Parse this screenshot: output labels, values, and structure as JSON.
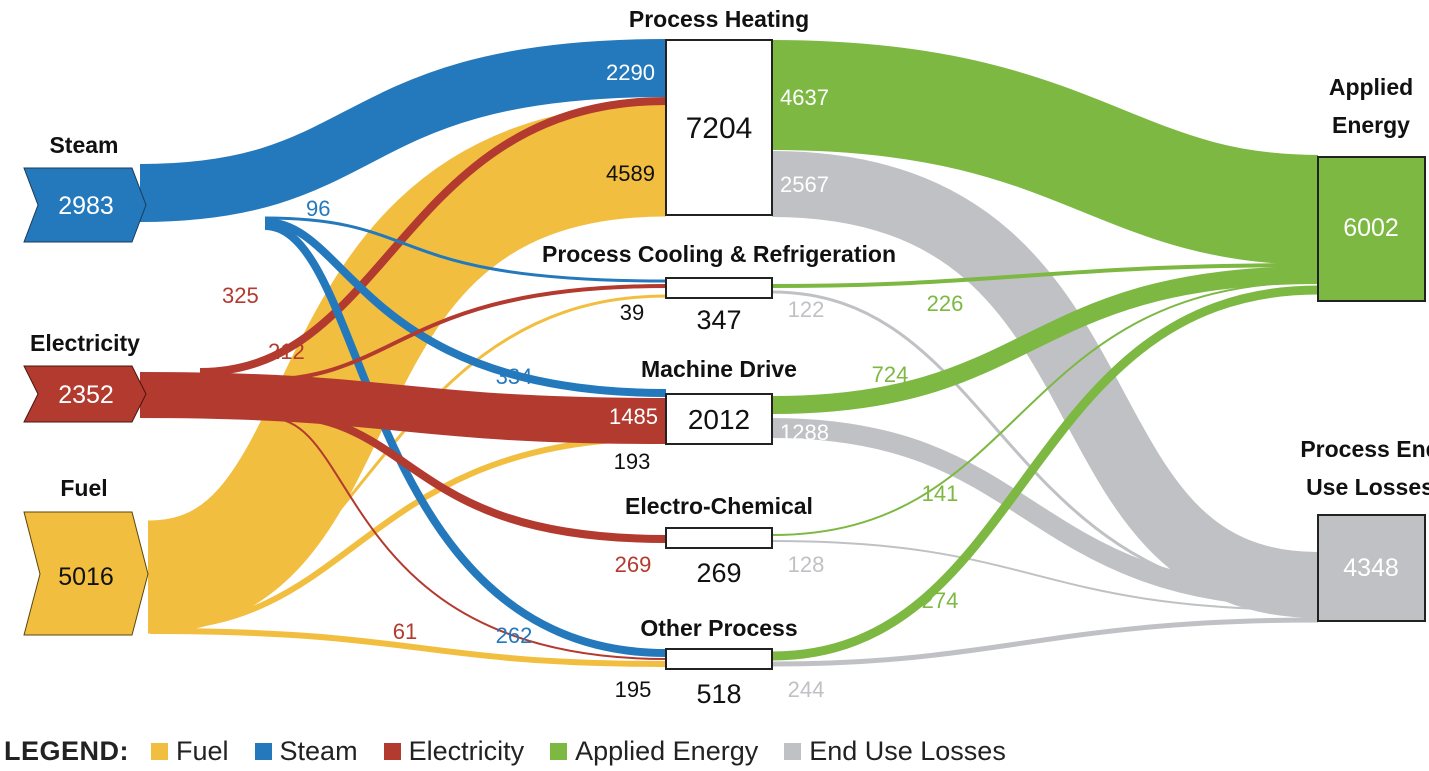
{
  "colors": {
    "fuel": "#F2BE3F",
    "steam": "#2479BD",
    "electricity": "#B33A2F",
    "applied": "#7CB842",
    "losses": "#BFC1C4"
  },
  "sources": {
    "steam": {
      "label": "Steam",
      "value": "2983"
    },
    "electricity": {
      "label": "Electricity",
      "value": "2352"
    },
    "fuel": {
      "label": "Fuel",
      "value": "5016"
    }
  },
  "processes": {
    "heating": {
      "label": "Process Heating",
      "value": "7204"
    },
    "cooling": {
      "label": "Process Cooling & Refrigeration",
      "value": "347"
    },
    "machine": {
      "label": "Machine Drive",
      "value": "2012"
    },
    "electro": {
      "label": "Electro-Chemical",
      "value": "269"
    },
    "other": {
      "label": "Other Process",
      "value": "518"
    }
  },
  "outputs": {
    "applied": {
      "label_line1": "Applied",
      "label_line2": "Energy",
      "value": "6002"
    },
    "losses": {
      "label_line1": "Process End",
      "label_line2": "Use Losses",
      "value": "4348"
    }
  },
  "flow_labels": {
    "heating_steam": "2290",
    "heating_fuel": "4589",
    "heating_applied": "4637",
    "heating_losses": "2567",
    "steam_cooling": "96",
    "elec_heating": "325",
    "elec_cooling": "212",
    "cooling_fuel": "39",
    "cooling_losses": "122",
    "cooling_applied": "226",
    "steam_machine": "334",
    "machine_elec": "1485",
    "machine_fuel": "193",
    "machine_applied": "724",
    "machine_losses": "1288",
    "electro_elec": "269",
    "electro_losses": "128",
    "electro_applied": "141",
    "elec_other": "61",
    "steam_other": "262",
    "other_fuel": "195",
    "other_losses": "244",
    "other_applied": "274"
  },
  "legend": {
    "title": "LEGEND:",
    "items": [
      {
        "label": "Fuel",
        "color": "#F2BE3F"
      },
      {
        "label": "Steam",
        "color": "#2479BD"
      },
      {
        "label": "Electricity",
        "color": "#B33A2F"
      },
      {
        "label": "Applied Energy",
        "color": "#7CB842"
      },
      {
        "label": "End Use Losses",
        "color": "#BFC1C4"
      }
    ]
  }
}
